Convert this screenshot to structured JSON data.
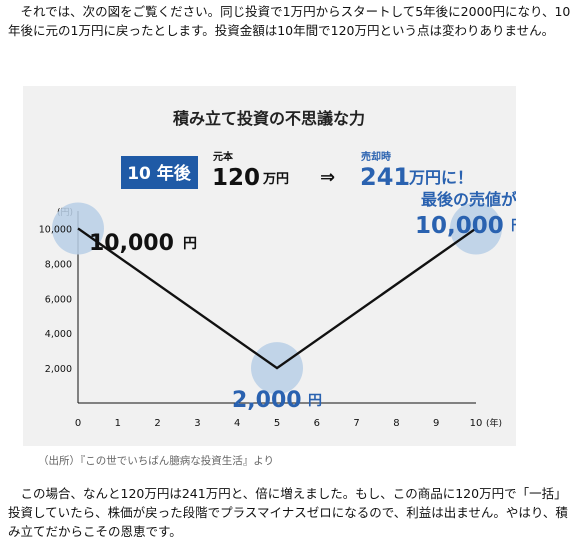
{
  "intro_text": "それでは、次の図をご覧ください。同じ投資で1万円からスタートして5年後に2000円になり、10年後に元の1万円に戻ったとします。投資金額は10年間で120万円という点は変わりありません。",
  "conclusion_text": "この場合、なんと120万円は241万円と、倍に増えました。もし、この商品に120万円で「一括」投資していたら、株価が戻った段階でプラスマイナスゼロになるので、利益は出ません。やはり、積み立てだからこその恩恵です。",
  "caption": "（出所）『この世でいちばん臆病な投資生活』より",
  "banner": {
    "badge": "10 年後",
    "principal_label": "元本",
    "principal_value": "120",
    "principal_unit": "万円",
    "arrow": "⇒",
    "sale_label": "売却時",
    "sale_value": "241",
    "sale_unit": "万円に！"
  },
  "colors": {
    "badge_bg": "#1f5aa6",
    "accent_blue": "#2a62b0",
    "bubble": "#b9cfe6",
    "line": "#111111"
  },
  "chart_data": {
    "type": "line",
    "title": "積み立て投資の不思議な力",
    "ylabel": "(円)",
    "xlabel": "(年)",
    "x": [
      0,
      5,
      10
    ],
    "y": [
      10000,
      2000,
      10000
    ],
    "xticks": [
      "0",
      "1",
      "2",
      "3",
      "4",
      "5",
      "6",
      "7",
      "8",
      "9",
      "10"
    ],
    "yticks": [
      "2,000",
      "4,000",
      "6,000",
      "8,000",
      "10,000"
    ],
    "xlim": [
      0,
      10
    ],
    "ylim": [
      0,
      11000
    ],
    "annotations": {
      "start": {
        "value": "10,000",
        "unit": "円"
      },
      "low": {
        "value": "2,000",
        "unit": "円"
      },
      "end_line1": "最後の売値が",
      "end_value": "10,000",
      "end_unit": "円"
    }
  }
}
